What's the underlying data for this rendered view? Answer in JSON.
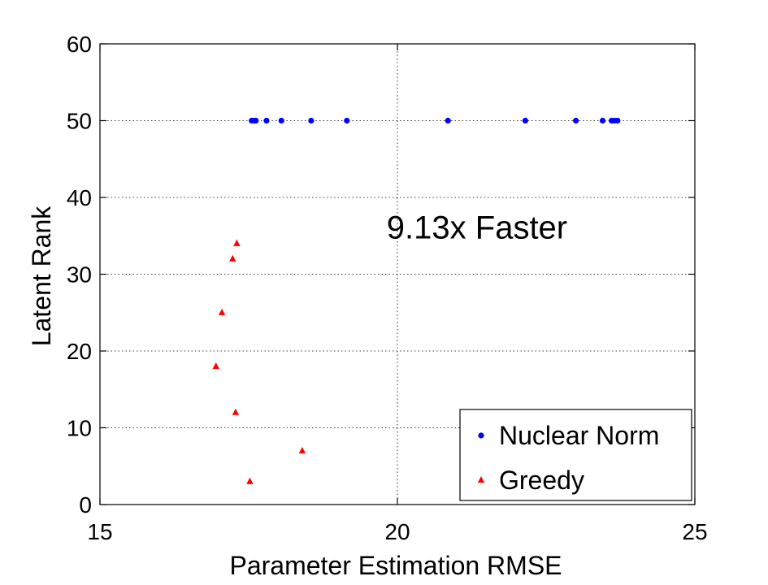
{
  "chart_data": {
    "type": "scatter",
    "xlabel": "Parameter Estimation RMSE",
    "ylabel": "Latent Rank",
    "xlim": [
      15,
      25
    ],
    "ylim": [
      0,
      60
    ],
    "xticks": [
      "15",
      "20",
      "25"
    ],
    "yticks": [
      "0",
      "10",
      "20",
      "30",
      "40",
      "50",
      "60"
    ],
    "grid": "dotted, at x=20 and y=10,20,30,40,50",
    "legend_position": "bottom-right",
    "annotation": {
      "text": "9.13x Faster",
      "x": 21.5,
      "y": 35
    },
    "series": [
      {
        "name": "Nuclear Norm",
        "color": "#0000ff",
        "marker": "dot",
        "points": [
          [
            17.55,
            50
          ],
          [
            17.6,
            50
          ],
          [
            17.62,
            50
          ],
          [
            17.8,
            50
          ],
          [
            18.05,
            50
          ],
          [
            18.55,
            50
          ],
          [
            19.15,
            50
          ],
          [
            20.85,
            50
          ],
          [
            22.15,
            50
          ],
          [
            23.0,
            50
          ],
          [
            23.45,
            50
          ],
          [
            23.6,
            50
          ],
          [
            23.65,
            50
          ],
          [
            23.7,
            50
          ]
        ]
      },
      {
        "name": "Greedy",
        "color": "#ff0000",
        "marker": "triangle",
        "points": [
          [
            17.3,
            34
          ],
          [
            17.23,
            32
          ],
          [
            17.05,
            25
          ],
          [
            16.95,
            18
          ],
          [
            17.28,
            12
          ],
          [
            18.4,
            7
          ],
          [
            17.52,
            3
          ]
        ]
      }
    ]
  }
}
